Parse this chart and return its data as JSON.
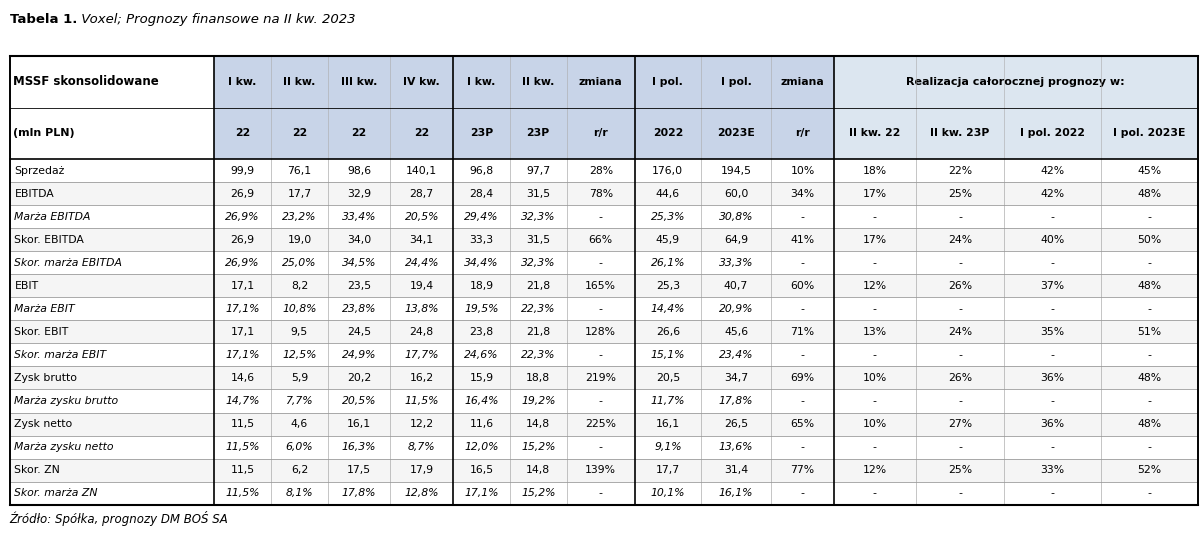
{
  "title_bold": "Tabela 1.",
  "title_italic": " Voxel; Prognozy finansowe na II kw. 2023",
  "footer": "Źródło: Spółka, prognozy DM BOŚ SA",
  "rows": [
    [
      "Sprzedaż",
      "99,9",
      "76,1",
      "98,6",
      "140,1",
      "96,8",
      "97,7",
      "28%",
      "176,0",
      "194,5",
      "10%",
      "18%",
      "22%",
      "42%",
      "45%"
    ],
    [
      "EBITDA",
      "26,9",
      "17,7",
      "32,9",
      "28,7",
      "28,4",
      "31,5",
      "78%",
      "44,6",
      "60,0",
      "34%",
      "17%",
      "25%",
      "42%",
      "48%"
    ],
    [
      "Marża EBITDA",
      "26,9%",
      "23,2%",
      "33,4%",
      "20,5%",
      "29,4%",
      "32,3%",
      "-",
      "25,3%",
      "30,8%",
      "-",
      "-",
      "-",
      "-",
      "-"
    ],
    [
      "Skor. EBITDA",
      "26,9",
      "19,0",
      "34,0",
      "34,1",
      "33,3",
      "31,5",
      "66%",
      "45,9",
      "64,9",
      "41%",
      "17%",
      "24%",
      "40%",
      "50%"
    ],
    [
      "Skor. marża EBITDA",
      "26,9%",
      "25,0%",
      "34,5%",
      "24,4%",
      "34,4%",
      "32,3%",
      "-",
      "26,1%",
      "33,3%",
      "-",
      "-",
      "-",
      "-",
      "-"
    ],
    [
      "EBIT",
      "17,1",
      "8,2",
      "23,5",
      "19,4",
      "18,9",
      "21,8",
      "165%",
      "25,3",
      "40,7",
      "60%",
      "12%",
      "26%",
      "37%",
      "48%"
    ],
    [
      "Marża EBIT",
      "17,1%",
      "10,8%",
      "23,8%",
      "13,8%",
      "19,5%",
      "22,3%",
      "-",
      "14,4%",
      "20,9%",
      "-",
      "-",
      "-",
      "-",
      "-"
    ],
    [
      "Skor. EBIT",
      "17,1",
      "9,5",
      "24,5",
      "24,8",
      "23,8",
      "21,8",
      "128%",
      "26,6",
      "45,6",
      "71%",
      "13%",
      "24%",
      "35%",
      "51%"
    ],
    [
      "Skor. marża EBIT",
      "17,1%",
      "12,5%",
      "24,9%",
      "17,7%",
      "24,6%",
      "22,3%",
      "-",
      "15,1%",
      "23,4%",
      "-",
      "-",
      "-",
      "-",
      "-"
    ],
    [
      "Zysk brutto",
      "14,6",
      "5,9",
      "20,2",
      "16,2",
      "15,9",
      "18,8",
      "219%",
      "20,5",
      "34,7",
      "69%",
      "10%",
      "26%",
      "36%",
      "48%"
    ],
    [
      "Marża zysku brutto",
      "14,7%",
      "7,7%",
      "20,5%",
      "11,5%",
      "16,4%",
      "19,2%",
      "-",
      "11,7%",
      "17,8%",
      "-",
      "-",
      "-",
      "-",
      "-"
    ],
    [
      "Zysk netto",
      "11,5",
      "4,6",
      "16,1",
      "12,2",
      "11,6",
      "14,8",
      "225%",
      "16,1",
      "26,5",
      "65%",
      "10%",
      "27%",
      "36%",
      "48%"
    ],
    [
      "Marża zysku netto",
      "11,5%",
      "6,0%",
      "16,3%",
      "8,7%",
      "12,0%",
      "15,2%",
      "-",
      "9,1%",
      "13,6%",
      "-",
      "-",
      "-",
      "-",
      "-"
    ],
    [
      "Skor. ZN",
      "11,5",
      "6,2",
      "17,5",
      "17,9",
      "16,5",
      "14,8",
      "139%",
      "17,7",
      "31,4",
      "77%",
      "12%",
      "25%",
      "33%",
      "52%"
    ],
    [
      "Skor. marża ZN",
      "11,5%",
      "8,1%",
      "17,8%",
      "12,8%",
      "17,1%",
      "15,2%",
      "-",
      "10,1%",
      "16,1%",
      "-",
      "-",
      "-",
      "-",
      "-"
    ]
  ],
  "italic_rows": [
    2,
    4,
    6,
    8,
    10,
    12,
    14
  ],
  "header_bg": "#c8d4e8",
  "realizacja_bg": "#dce6f0",
  "alt_row_bg": "#f5f5f5",
  "normal_row_bg": "#ffffff",
  "border_color": "#000000",
  "col_widths_raw": [
    1.8,
    0.5,
    0.5,
    0.55,
    0.55,
    0.5,
    0.5,
    0.6,
    0.58,
    0.62,
    0.55,
    0.72,
    0.78,
    0.85,
    0.85
  ]
}
